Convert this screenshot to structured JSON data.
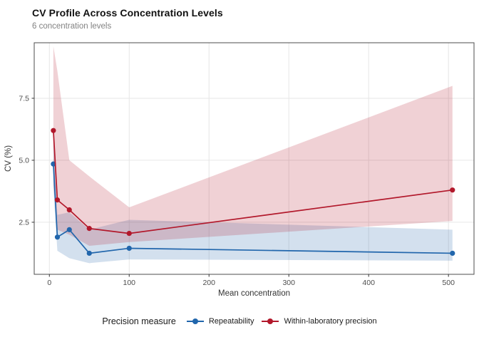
{
  "header": {
    "title": "CV Profile Across Concentration Levels",
    "subtitle": "6 concentration levels"
  },
  "legend": {
    "title": "Precision measure",
    "items": [
      {
        "label": "Repeatability",
        "color": "#2166ac"
      },
      {
        "label": "Within-laboratory precision",
        "color": "#b2182b"
      }
    ]
  },
  "chart_data": {
    "type": "line",
    "title": "CV Profile Across Concentration Levels",
    "subtitle": "6 concentration levels",
    "xlabel": "Mean concentration",
    "ylabel": "CV (%)",
    "x": [
      5,
      10,
      25,
      50,
      100,
      505
    ],
    "series": [
      {
        "name": "Repeatability",
        "color": "#2166ac",
        "values": [
          4.85,
          1.9,
          2.2,
          1.25,
          1.45,
          1.25
        ],
        "band_lower": [
          3.9,
          1.35,
          1.05,
          0.85,
          1.0,
          0.95
        ],
        "band_upper": [
          5.9,
          2.8,
          2.9,
          2.2,
          2.6,
          2.2
        ]
      },
      {
        "name": "Within-laboratory precision",
        "color": "#b2182b",
        "values": [
          6.2,
          3.4,
          3.0,
          2.25,
          2.05,
          3.8
        ],
        "band_lower": [
          4.0,
          2.2,
          2.0,
          1.55,
          1.7,
          2.55
        ],
        "band_upper": [
          9.6,
          8.6,
          5.0,
          4.35,
          3.1,
          8.0
        ]
      }
    ],
    "x_ticks": [
      0,
      100,
      200,
      300,
      400,
      500
    ],
    "x_tick_labels": [
      "0",
      "100",
      "200",
      "300",
      "400",
      "500"
    ],
    "y_ticks": [
      2.5,
      5.0,
      7.5
    ],
    "y_tick_labels": [
      "2.5",
      "5.0",
      "7.5"
    ],
    "xlim": [
      -19,
      532
    ],
    "ylim": [
      0.4,
      9.74
    ],
    "grid": "major-only",
    "band_opacity": 0.2,
    "legend_title": "Precision measure",
    "legend_position": "bottom",
    "panel_border_color": "#4d4d4d",
    "grid_color": "#e6e6e6",
    "tick_label_color": "#4d4d4d",
    "axis_title_color": "#333333"
  }
}
